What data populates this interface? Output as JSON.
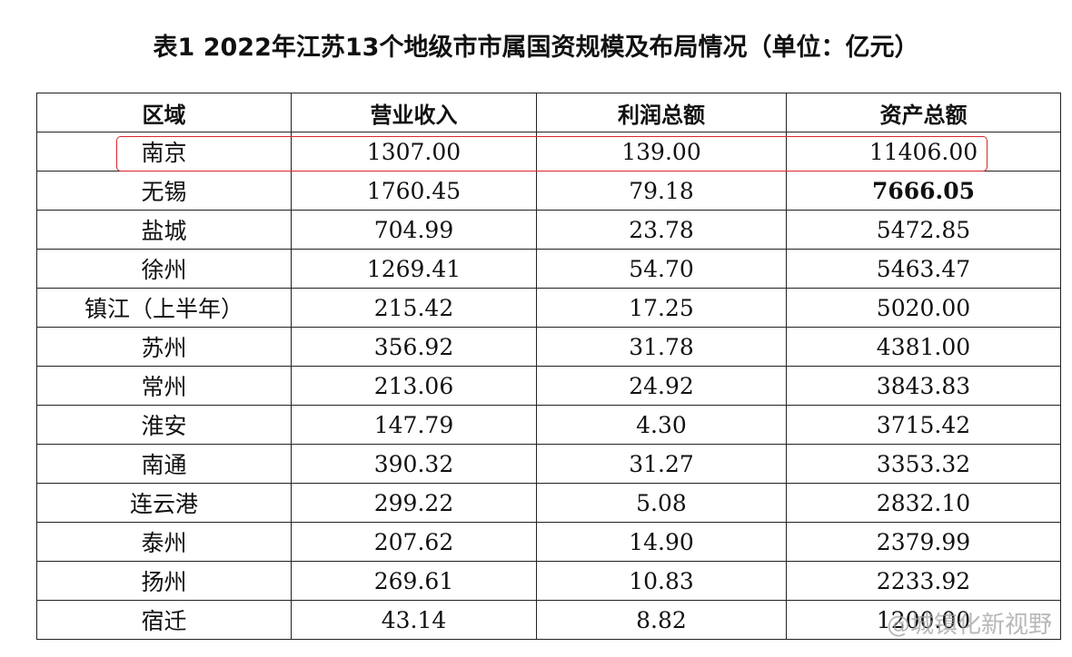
{
  "title": "表1 2022年江苏13个地级市市属国资规模及布局情况（单位：亿元）",
  "table": {
    "header": [
      "区域",
      "营业收入",
      "利润总额",
      "资产总额"
    ],
    "rows": [
      [
        "南京",
        "1307.00",
        "139.00",
        "11406.00"
      ],
      [
        "无锡",
        "1760.45",
        "79.18",
        "7666.05"
      ],
      [
        "盐城",
        "704.99",
        "23.78",
        "5472.85"
      ],
      [
        "徐州",
        "1269.41",
        "54.70",
        "5463.47"
      ],
      [
        "镇江（上半年）",
        "215.42",
        "17.25",
        "5020.00"
      ],
      [
        "苏州",
        "356.92",
        "31.78",
        "4381.00"
      ],
      [
        "常州",
        "213.06",
        "24.92",
        "3843.83"
      ],
      [
        "淮安",
        "147.79",
        "4.30",
        "3715.42"
      ],
      [
        "南通",
        "390.32",
        "31.27",
        "3353.32"
      ],
      [
        "连云港",
        "299.22",
        "5.08",
        "2832.10"
      ],
      [
        "泰州",
        "207.62",
        "14.90",
        "2379.99"
      ],
      [
        "扬州",
        "269.61",
        "10.83",
        "2233.92"
      ],
      [
        "宿迁",
        "43.14",
        "8.82",
        "1200.00"
      ]
    ]
  },
  "watermark": "@城镇化新视野"
}
